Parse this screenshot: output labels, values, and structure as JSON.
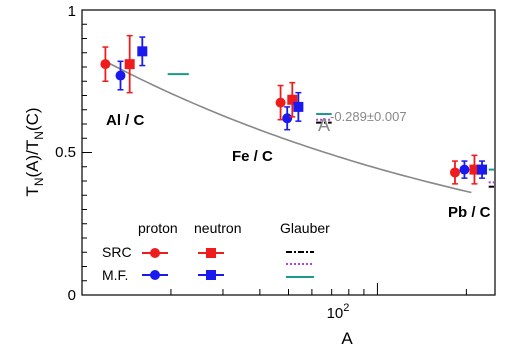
{
  "chart_data": {
    "type": "scatter",
    "xlabel": "A",
    "ylabel_main": "T",
    "ylabel_sub1": "N",
    "ylabel_mid": "(A)/T",
    "ylabel_sub2": "N",
    "ylabel_end": "(C)",
    "xscale": "log",
    "xlim": [
      10,
      250
    ],
    "ylim": [
      0,
      1
    ],
    "y_ticks": [
      0,
      0.5,
      1
    ],
    "y_tick_labels": [
      "0",
      "0.5",
      "1"
    ],
    "x_major_tick": 100,
    "x_tick_label_base": "10",
    "x_tick_label_exp": "2",
    "grid": false,
    "fit": {
      "label_base": "A",
      "label_exp": "-0.289±0.007",
      "exponent": -0.289,
      "norm": 0.82,
      "x_range": [
        12,
        208
      ],
      "color": "#888888"
    },
    "nuclei": [
      {
        "label": "Al / C",
        "A": 27
      },
      {
        "label": "Fe / C",
        "A": 56
      },
      {
        "label": "Pb / C",
        "A": 208
      }
    ],
    "series": [
      {
        "name": "proton SRC",
        "color": "#ee1c1c",
        "marker": "circle",
        "points": [
          {
            "x": 12.0,
            "y": 0.81,
            "err": 0.06
          },
          {
            "x": 47.0,
            "y": 0.675,
            "err": 0.06
          },
          {
            "x": 183,
            "y": 0.43,
            "err": 0.04
          }
        ]
      },
      {
        "name": "proton M.F.",
        "color": "#1a1aee",
        "marker": "circle",
        "points": [
          {
            "x": 13.5,
            "y": 0.77,
            "err": 0.05
          },
          {
            "x": 49.5,
            "y": 0.62,
            "err": 0.04
          },
          {
            "x": 197,
            "y": 0.44,
            "err": 0.03
          }
        ]
      },
      {
        "name": "neutron SRC",
        "color": "#ee1c1c",
        "marker": "square",
        "points": [
          {
            "x": 14.5,
            "y": 0.81,
            "err": 0.1
          },
          {
            "x": 51.5,
            "y": 0.685,
            "err": 0.06
          },
          {
            "x": 213,
            "y": 0.44,
            "err": 0.05
          }
        ]
      },
      {
        "name": "neutron M.F.",
        "color": "#1a1aee",
        "marker": "square",
        "points": [
          {
            "x": 16.0,
            "y": 0.855,
            "err": 0.05
          },
          {
            "x": 54.0,
            "y": 0.66,
            "err": 0.05
          },
          {
            "x": 226,
            "y": 0.44,
            "err": 0.03
          }
        ]
      }
    ],
    "glauber": [
      {
        "style": "dashdot",
        "color": "#000000",
        "segments": [
          {
            "x0": 62,
            "x1": 70,
            "y": 0.605
          },
          {
            "x0": 238,
            "x1": 248,
            "y": 0.38
          }
        ]
      },
      {
        "style": "dotted",
        "color": "#b040e0",
        "segments": [
          {
            "x0": 62,
            "x1": 70,
            "y": 0.615
          },
          {
            "x0": 238,
            "x1": 248,
            "y": 0.395
          }
        ]
      },
      {
        "style": "solid",
        "color": "#1a9a8a",
        "segments": [
          {
            "x0": 19.5,
            "x1": 23,
            "y": 0.775
          },
          {
            "x0": 62,
            "x1": 70,
            "y": 0.635
          },
          {
            "x0": 238,
            "x1": 248,
            "y": 0.44
          }
        ]
      }
    ],
    "legend": {
      "placement": "bottom-left",
      "col_proton": "proton",
      "col_neutron": "neutron",
      "col_glauber": "Glauber",
      "row_src": "SRC",
      "row_mf": "M.F."
    }
  }
}
